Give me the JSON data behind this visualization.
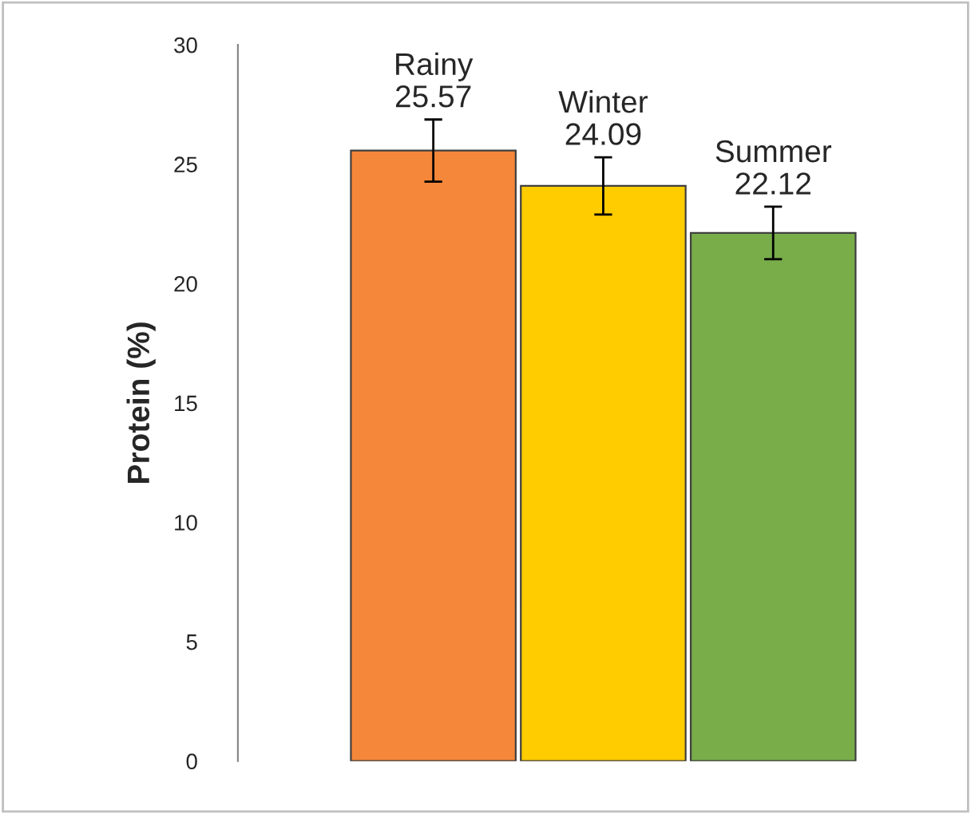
{
  "chart_data": {
    "type": "bar",
    "ylabel": "Protein (%)",
    "categories": [
      "Rainy",
      "Winter",
      "Summer"
    ],
    "values": [
      25.57,
      24.09,
      22.12
    ],
    "colors": [
      "#f5873a",
      "#ffcc00",
      "#78ad4a"
    ],
    "errors": [
      1.3,
      1.2,
      1.1
    ],
    "ylim": [
      0,
      30
    ],
    "yticks": [
      0,
      5,
      10,
      15,
      20,
      25,
      30
    ],
    "grid": false,
    "data_labels": true
  }
}
